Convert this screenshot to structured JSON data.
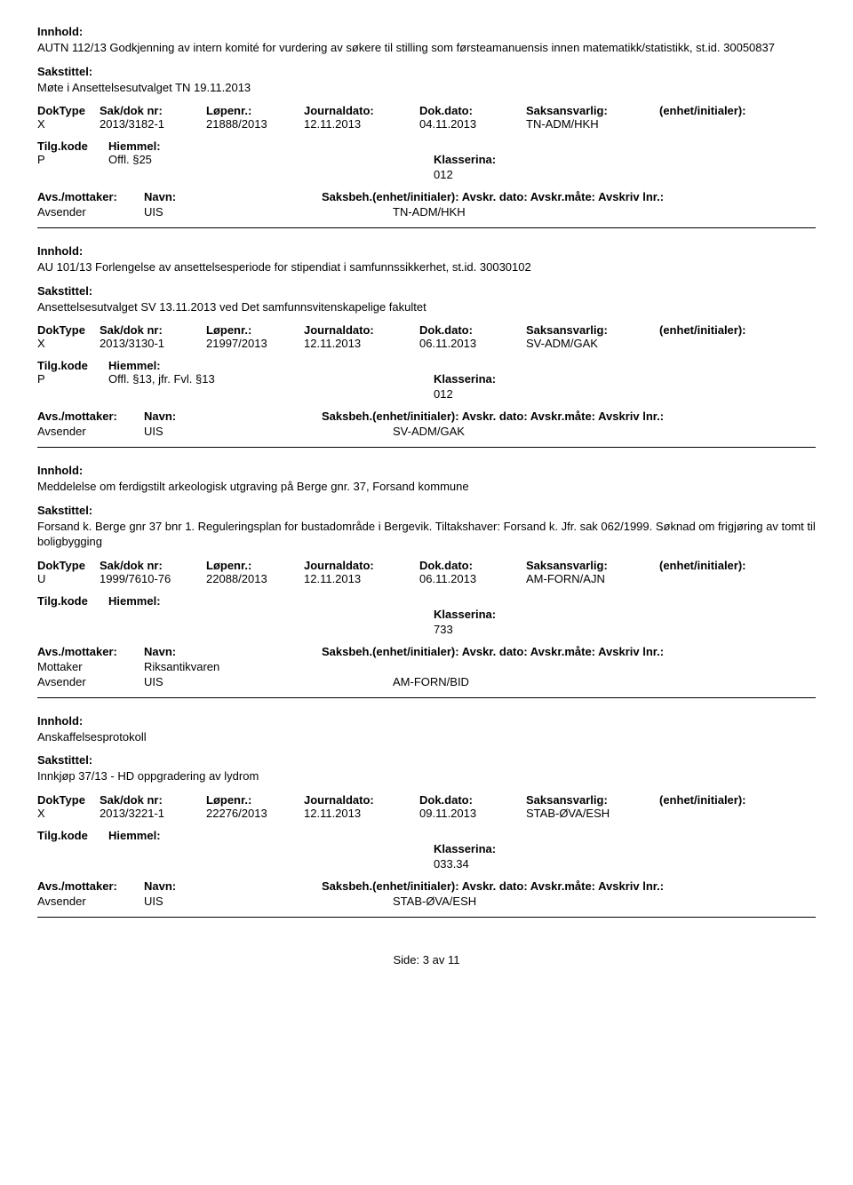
{
  "labels": {
    "innhold": "Innhold:",
    "sakstittel": "Sakstittel:",
    "doktype": "DokType",
    "saknr": "Sak/dok nr:",
    "lopenr": "Løpenr.:",
    "journaldato": "Journaldato:",
    "dokdato": "Dok.dato:",
    "saksansvarlig": "Saksansvarlig:",
    "enhet": "(enhet/initialer):",
    "tilgkode": "Tilg.kode",
    "hjemmel": "Hiemmel:",
    "klassering": "Klasserina:",
    "avs_mottaker": "Avs./mottaker:",
    "navn": "Navn:",
    "saksbeh_line": "Saksbeh.(enhet/initialer): Avskr. dato: Avskr.måte: Avskriv lnr.:",
    "side": "Side:",
    "av": "av"
  },
  "records": [
    {
      "innhold": "AUTN 112/13 Godkjenning av intern komité for vurdering av søkere til stilling som førsteamanuensis innen matematikk/statistikk, st.id. 30050837",
      "sakstittel": "Møte i Ansettelsesutvalget TN 19.11.2013",
      "doktype": "X",
      "saknr": "2013/3182-1",
      "lopenr": "21888/2013",
      "journaldato": "12.11.2013",
      "dokdato": "04.11.2013",
      "saksansvarlig": "TN-ADM/HKH",
      "tilgkode": "P",
      "hjemmel": "Offl. §25",
      "klassering": "012",
      "parties": [
        {
          "role": "Avsender",
          "navn": "UIS",
          "saksbeh": "TN-ADM/HKH"
        }
      ]
    },
    {
      "innhold": "AU 101/13 Forlengelse av ansettelsesperiode for stipendiat i samfunnssikkerhet, st.id. 30030102",
      "sakstittel": "Ansettelsesutvalget SV 13.11.2013 ved Det samfunnsvitenskapelige fakultet",
      "doktype": "X",
      "saknr": "2013/3130-1",
      "lopenr": "21997/2013",
      "journaldato": "12.11.2013",
      "dokdato": "06.11.2013",
      "saksansvarlig": "SV-ADM/GAK",
      "tilgkode": "P",
      "hjemmel": "Offl. §13, jfr. Fvl. §13",
      "klassering": "012",
      "parties": [
        {
          "role": "Avsender",
          "navn": "UIS",
          "saksbeh": "SV-ADM/GAK"
        }
      ]
    },
    {
      "innhold": "Meddelelse om ferdigstilt arkeologisk utgraving på Berge gnr. 37, Forsand kommune",
      "sakstittel": "Forsand k. Berge gnr 37 bnr 1. Reguleringsplan for bustadområde i Bergevik. Tiltakshaver: Forsand k.  Jfr. sak 062/1999. Søknad om frigjøring av tomt til boligbygging",
      "doktype": "U",
      "saknr": "1999/7610-76",
      "lopenr": "22088/2013",
      "journaldato": "12.11.2013",
      "dokdato": "06.11.2013",
      "saksansvarlig": "AM-FORN/AJN",
      "tilgkode": "",
      "hjemmel": "",
      "klassering": "733",
      "parties": [
        {
          "role": "Mottaker",
          "navn": "Riksantikvaren",
          "saksbeh": ""
        },
        {
          "role": "Avsender",
          "navn": "UIS",
          "saksbeh": "AM-FORN/BID"
        }
      ]
    },
    {
      "innhold": "Anskaffelsesprotokoll",
      "sakstittel": "Innkjøp 37/13 - HD oppgradering av lydrom",
      "doktype": "X",
      "saknr": "2013/3221-1",
      "lopenr": "22276/2013",
      "journaldato": "12.11.2013",
      "dokdato": "09.11.2013",
      "saksansvarlig": "STAB-ØVA/ESH",
      "tilgkode": "",
      "hjemmel": "",
      "klassering": "033.34",
      "parties": [
        {
          "role": "Avsender",
          "navn": "UIS",
          "saksbeh": "STAB-ØVA/ESH"
        }
      ]
    }
  ],
  "footer": {
    "page": "3",
    "total": "11"
  }
}
